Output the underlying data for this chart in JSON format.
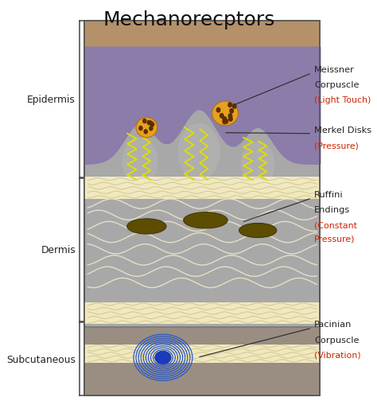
{
  "title": "Mechanorecptors",
  "title_fontsize": 18,
  "background_color": "#ffffff",
  "layer_colors": {
    "skin_top": "#b5916a",
    "epidermis_purple": "#8b7aab",
    "dermis": "#a8a8a8",
    "subcutaneous": "#9a8e82",
    "fiber_color": "#f0e8c0",
    "fiber_border": "#d4c890"
  },
  "labels": {
    "epidermis": "Epidermis",
    "dermis": "Dermis",
    "subcutaneous": "Subcutaneous"
  },
  "annotation_color": "#cc2200",
  "annotation_name_color": "#222222"
}
